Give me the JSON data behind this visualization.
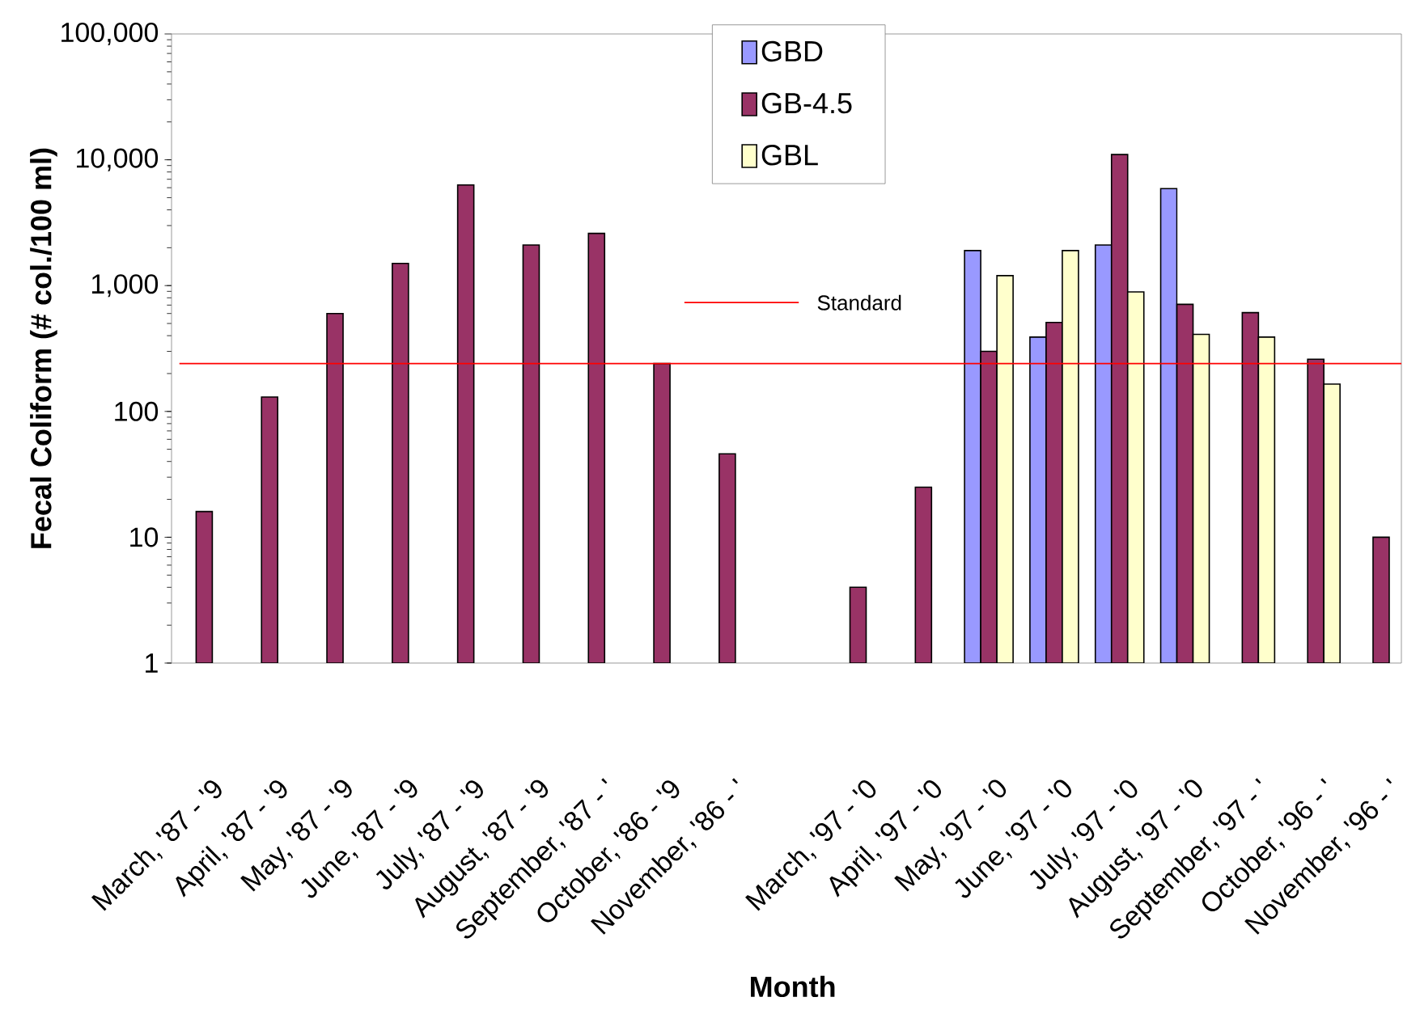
{
  "chart_data": {
    "type": "bar",
    "xlabel": "Month",
    "ylabel": "Fecal Coliform (# col./100 ml)",
    "categories": [
      "March, '87 - '9",
      "April, '87 - '9",
      "May, '87 - '9",
      "June, '87 - '9",
      "July, '87 - '9",
      "August, '87 - '9",
      "September, '87 - '",
      "October, '86 - '9",
      "November, '86 - '",
      null,
      "March, '97 - '0",
      "April, '97 - '0",
      "May, '97 - '0",
      "June, '97 - '0",
      "July, '97 - '0",
      "August, '97 - '0",
      "September, '97 - '",
      "October, '96 - '",
      "November, '96 - '"
    ],
    "series": [
      {
        "name": "GBD",
        "color": "#9999ff",
        "values": [
          null,
          null,
          null,
          null,
          null,
          null,
          null,
          null,
          null,
          null,
          null,
          null,
          1900,
          390,
          2100,
          5900,
          null,
          null,
          null
        ]
      },
      {
        "name": "GB-4.5",
        "color": "#993366",
        "values": [
          16,
          130,
          600,
          1500,
          6300,
          2100,
          2600,
          240,
          46,
          null,
          4,
          25,
          300,
          510,
          11000,
          710,
          610,
          260,
          10
        ]
      },
      {
        "name": "GBL",
        "color": "#ffffcc",
        "values": [
          null,
          null,
          null,
          null,
          null,
          null,
          null,
          null,
          null,
          null,
          null,
          null,
          1200,
          1900,
          890,
          410,
          390,
          165,
          null
        ]
      }
    ],
    "log": true,
    "ylim": [
      1,
      100000
    ],
    "yticks": [
      1,
      10,
      100,
      {
        "value": 1000,
        "label": "1,000"
      },
      {
        "value": 10000,
        "label": "10,000"
      },
      {
        "value": 100000,
        "label": "100,000"
      }
    ],
    "ref_lines": [
      {
        "axis": "y",
        "value": 240,
        "label": "Standard",
        "color": "#ff0000"
      }
    ],
    "legend": "top"
  }
}
